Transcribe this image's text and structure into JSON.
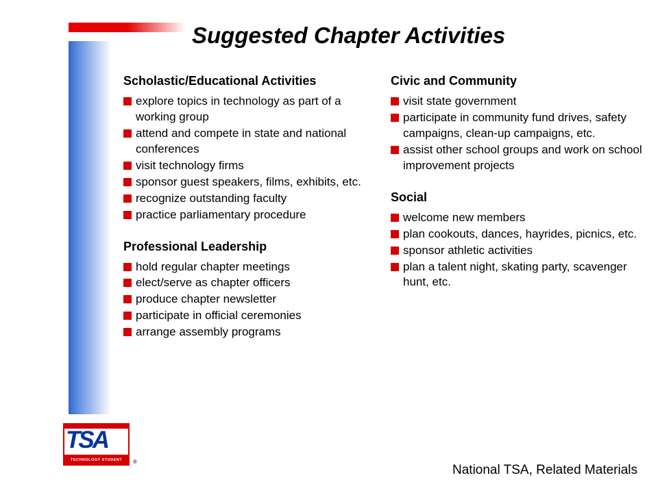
{
  "title": "Suggested Chapter Activities",
  "columns": {
    "left": [
      {
        "heading": "Scholastic/Educational Activities",
        "items": [
          "explore topics in technology as part of a working group",
          "attend and compete in state and national conferences",
          "visit technology firms",
          "sponsor guest speakers, films, exhibits, etc.",
          "recognize outstanding faculty",
          "practice parliamentary procedure"
        ]
      },
      {
        "heading": "Professional Leadership",
        "items": [
          "hold regular chapter meetings",
          "elect/serve as chapter officers",
          "produce chapter newsletter",
          "participate in official ceremonies",
          "arrange assembly programs"
        ]
      }
    ],
    "right": [
      {
        "heading": "Civic and Community",
        "items": [
          "visit state government",
          "participate in community fund drives, safety campaigns, clean-up campaigns, etc.",
          "assist other school groups and work on school improvement projects"
        ]
      },
      {
        "heading": "Social",
        "items": [
          "welcome new members",
          "plan cookouts, dances, hayrides, picnics, etc.",
          "sponsor athletic activities",
          "plan a talent night, skating party, scavenger hunt, etc."
        ]
      }
    ]
  },
  "logo": {
    "acronym": "TSA",
    "subtitle": "TECHNOLOGY STUDENT ASSOCIATION",
    "registered": "®"
  },
  "footer": "National TSA, Related Materials",
  "styling": {
    "bullet_color": "#d40000",
    "title_fontsize": 33,
    "heading_fontsize": 18,
    "body_fontsize": 17,
    "top_bar_gradient": [
      "#e40000",
      "#ffffff"
    ],
    "side_bar_gradient": [
      "#3366cc",
      "#ffffff"
    ],
    "logo_red": "#d40000",
    "logo_blue": "#0033a0",
    "background": "#ffffff"
  }
}
